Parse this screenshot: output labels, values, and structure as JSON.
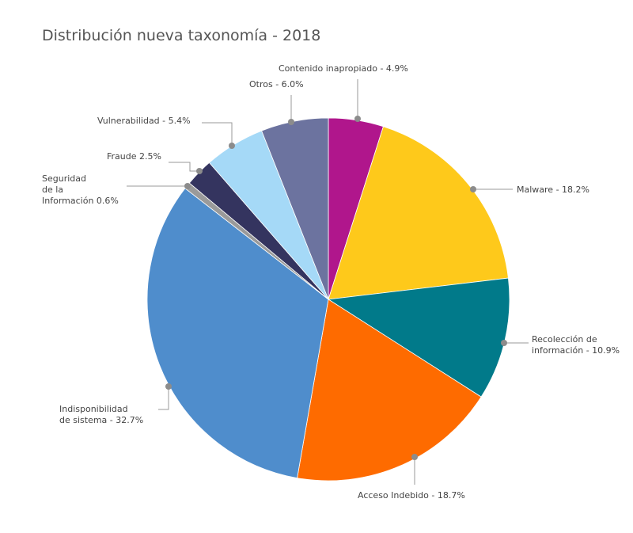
{
  "chart_data": {
    "type": "pie",
    "title": "Distribución nueva taxonomía - 2018",
    "values": [
      4.9,
      18.2,
      10.9,
      18.7,
      32.7,
      0.6,
      2.5,
      5.4,
      6.0
    ],
    "value_labels": [
      "Contenido inapropiado - 4.9%",
      "Malware - 18.2%",
      "Recolección de\ninformación - 10.9%",
      "Acceso Indebido - 18.7%",
      "Indisponibilidad\nde sistema - 32.7%",
      "Seguridad\nde la\nInformación 0.6%",
      "Fraude 2.5%",
      "Vulnerabilidad - 5.4%",
      "Otros - 6.0%"
    ],
    "colors": [
      "#b0168c",
      "#fec91b",
      "#017a8a",
      "#fe6b00",
      "#4f8dcc",
      "#9a9a9a",
      "#34345f",
      "#a5d9f7",
      "#6c739f"
    ]
  }
}
